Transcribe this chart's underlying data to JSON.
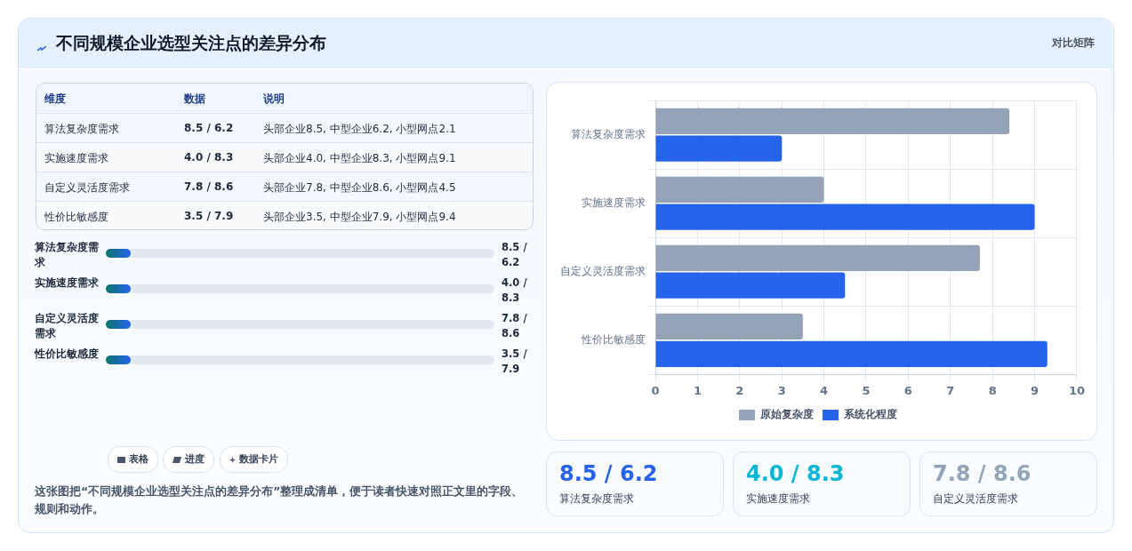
{
  "chart_data": [
    {
      "type": "other",
      "title": "不同规模企业选型关注点的差异分布",
      "subtitle": "对比矩阵",
      "annotations": [
        "维度",
        "数据",
        "说明",
        "算法复杂度需求",
        "8.5 / 6.2",
        "头部企业8.5, 中型企业6.2, 小型网点2.1",
        "实施速度需求",
        "4.0 / 8.3",
        "头部企业4.0, 中型企业8.3, 小型网点9.1",
        "自定义灵活度需求",
        "7.8 / 8.6",
        "头部企业7.8, 中型企业8.6, 小型网点4.5",
        "性价比敏感度",
        "3.5 / 7.9",
        "头部企业3.5, 中型企业7.9, 小型网点9.4",
        "算法复杂度需求",
        "8.5 / 6.2",
        "实施速度需求",
        "4.0 / 8.3",
        "自定义灵活度需求",
        "7.8 / 8.6",
        "性价比敏感度",
        "3.5 / 7.9",
        "表格",
        "进度",
        "数据卡片",
        "这张图把“不同规模企业选型关注点的差异分布”整理成清单，便于读者快速对照正文里的字段、规则和动作。",
        "8.5 / 6.2",
        "算法复杂度需求",
        "4.0 / 8.3",
        "实施速度需求",
        "7.8 / 8.6",
        "自定义灵活度需求"
      ]
    },
    {
      "type": "bar",
      "orientation": "horizontal",
      "categories": [
        "算法复杂度需求",
        "实施速度需求",
        "自定义灵活度需求",
        "性价比敏感度"
      ],
      "series": [
        {
          "name": "原始复杂度",
          "color": "#94a3b8",
          "values": [
            8.4,
            4.0,
            7.7,
            3.5
          ]
        },
        {
          "name": "系统化程度",
          "color": "#2563eb",
          "values": [
            3.0,
            9.0,
            4.5,
            9.3
          ]
        }
      ],
      "xlim": [
        0,
        10
      ],
      "xticks": [
        0,
        1,
        2,
        3,
        4,
        5,
        6,
        7,
        8,
        9,
        10
      ],
      "grid": true,
      "legend": "bottom"
    }
  ]
}
